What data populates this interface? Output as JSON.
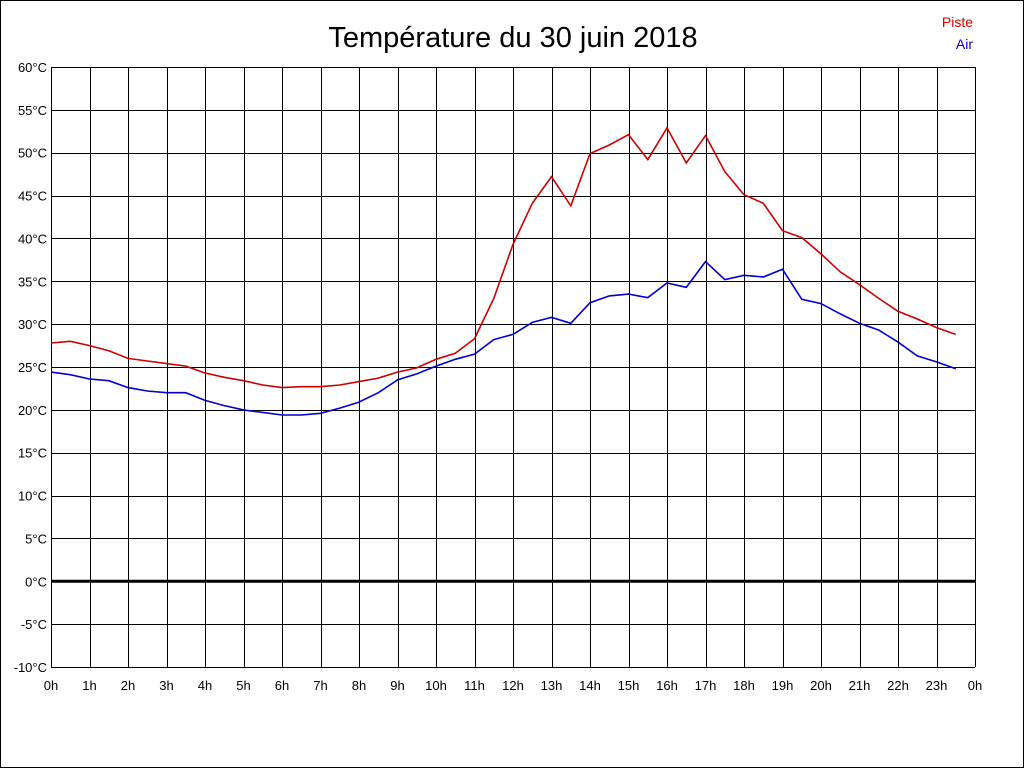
{
  "chart_data": {
    "type": "line",
    "title": "Température du 30 juin 2018",
    "x_ticks": [
      "0h",
      "1h",
      "2h",
      "3h",
      "4h",
      "5h",
      "6h",
      "7h",
      "8h",
      "9h",
      "10h",
      "11h",
      "12h",
      "13h",
      "14h",
      "15h",
      "16h",
      "17h",
      "18h",
      "19h",
      "20h",
      "21h",
      "22h",
      "23h",
      "0h"
    ],
    "xlim": [
      0,
      24
    ],
    "y_ticks": [
      "60°C",
      "55°C",
      "50°C",
      "45°C",
      "40°C",
      "35°C",
      "30°C",
      "25°C",
      "20°C",
      "15°C",
      "10°C",
      "5°C",
      "0°C",
      "-5°C",
      "-10°C"
    ],
    "ylim": [
      -10,
      60
    ],
    "grid": true,
    "legend_position": "top-right",
    "series": [
      {
        "name": "Piste",
        "color": "#cc0000",
        "x": [
          0,
          0.5,
          1,
          1.5,
          2,
          2.5,
          3,
          3.5,
          4,
          4.5,
          5,
          5.5,
          6,
          6.5,
          7,
          7.5,
          8,
          8.5,
          9,
          9.5,
          10,
          10.5,
          11,
          11.5,
          12,
          12.5,
          13,
          13.5,
          14,
          14.5,
          15,
          15.5,
          16,
          16.5,
          17,
          17.5,
          18,
          18.5,
          19,
          19.5,
          20,
          20.5,
          21,
          21.5,
          22,
          22.5,
          23,
          23.5
        ],
        "values": [
          27.8,
          28.0,
          27.5,
          26.9,
          26.0,
          25.7,
          25.4,
          25.1,
          24.3,
          23.8,
          23.4,
          22.9,
          22.6,
          22.7,
          22.7,
          22.9,
          23.3,
          23.7,
          24.4,
          24.9,
          25.9,
          26.6,
          28.3,
          33.0,
          39.3,
          44.1,
          47.2,
          43.8,
          49.9,
          50.9,
          52.1,
          49.2,
          52.9,
          48.8,
          52.0,
          47.8,
          45.1,
          44.1,
          40.9,
          40.1,
          38.2,
          36.1,
          34.6,
          33.0,
          31.5,
          30.6,
          29.6,
          28.8
        ]
      },
      {
        "name": "Air",
        "color": "#0000cc",
        "x": [
          0,
          0.5,
          1,
          1.5,
          2,
          2.5,
          3,
          3.5,
          4,
          4.5,
          5,
          5.5,
          6,
          6.5,
          7,
          7.5,
          8,
          8.5,
          9,
          9.5,
          10,
          10.5,
          11,
          11.5,
          12,
          12.5,
          13,
          13.5,
          14,
          14.5,
          15,
          15.5,
          16,
          16.5,
          17,
          17.5,
          18,
          18.5,
          19,
          19.5,
          20,
          20.5,
          21,
          21.5,
          22,
          22.5,
          23,
          23.5
        ],
        "values": [
          24.4,
          24.1,
          23.6,
          23.4,
          22.6,
          22.2,
          22.0,
          22.0,
          21.1,
          20.5,
          20.0,
          19.7,
          19.4,
          19.4,
          19.6,
          20.2,
          20.9,
          22.0,
          23.5,
          24.2,
          25.1,
          25.9,
          26.5,
          28.2,
          28.8,
          30.2,
          30.8,
          30.1,
          32.5,
          33.3,
          33.5,
          33.1,
          34.8,
          34.3,
          37.3,
          35.2,
          35.7,
          35.5,
          36.4,
          32.9,
          32.4,
          31.2,
          30.1,
          29.3,
          27.9,
          26.3,
          25.6,
          24.8
        ]
      }
    ]
  }
}
